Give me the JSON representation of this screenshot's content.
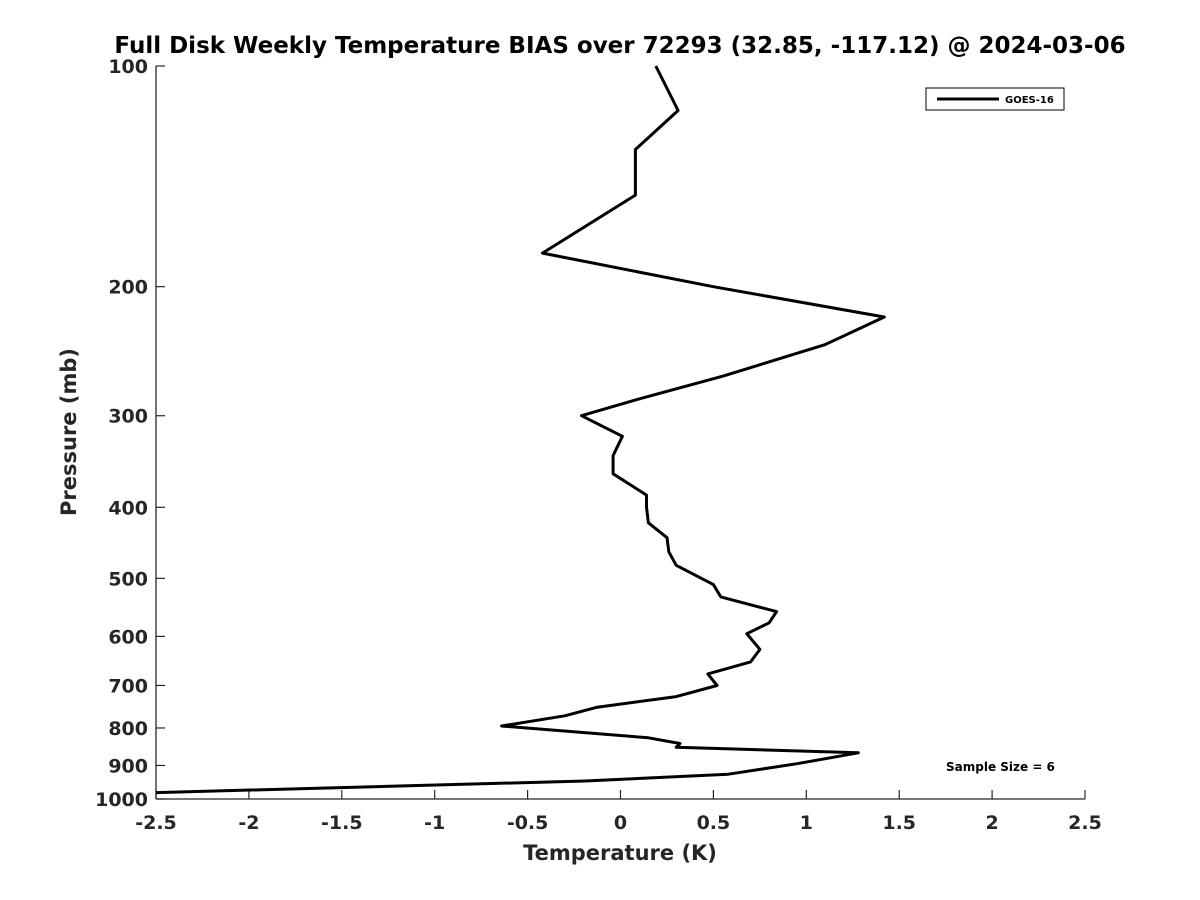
{
  "chart_data": {
    "type": "line",
    "title": "Full Disk Weekly Temperature BIAS over 72293 (32.85, -117.12) @ 2024-03-06",
    "xlabel": "Temperature (K)",
    "ylabel": "Pressure (mb)",
    "xlim": [
      -2.5,
      2.5
    ],
    "ylim": [
      1000,
      100
    ],
    "yscale": "log",
    "y_reversed": true,
    "x_ticks": [
      "-2.5",
      "-2",
      "-1.5",
      "-1",
      "-0.5",
      "0",
      "0.5",
      "1",
      "1.5",
      "2",
      "2.5"
    ],
    "y_ticks": [
      "100",
      "200",
      "300",
      "400",
      "500",
      "600",
      "700",
      "800",
      "900",
      "1000"
    ],
    "grid": false,
    "legend": {
      "position": "top-right",
      "entries": [
        "GOES-16"
      ]
    },
    "annotation": "Sample Size = 6",
    "series": [
      {
        "name": "GOES-16",
        "color": "#000000",
        "x": [
          0.19,
          0.31,
          0.08,
          0.08,
          -0.42,
          0.5,
          1.42,
          1.1,
          0.55,
          0.09,
          -0.21,
          0.01,
          -0.04,
          -0.04,
          0.14,
          0.14,
          0.15,
          0.25,
          0.26,
          0.3,
          0.5,
          0.54,
          0.84,
          0.8,
          0.68,
          0.75,
          0.7,
          0.47,
          0.52,
          0.3,
          -0.13,
          -0.3,
          -0.64,
          0.15,
          0.32,
          0.3,
          1.28,
          0.95,
          0.58,
          -0.19,
          -2.5
        ],
        "y": [
          100,
          115,
          130,
          150,
          180,
          200,
          220,
          240,
          265,
          285,
          300,
          320,
          340,
          360,
          385,
          400,
          420,
          440,
          460,
          480,
          510,
          530,
          555,
          575,
          595,
          625,
          650,
          675,
          700,
          725,
          750,
          770,
          795,
          825,
          840,
          850,
          865,
          895,
          925,
          945,
          980
        ]
      }
    ]
  }
}
